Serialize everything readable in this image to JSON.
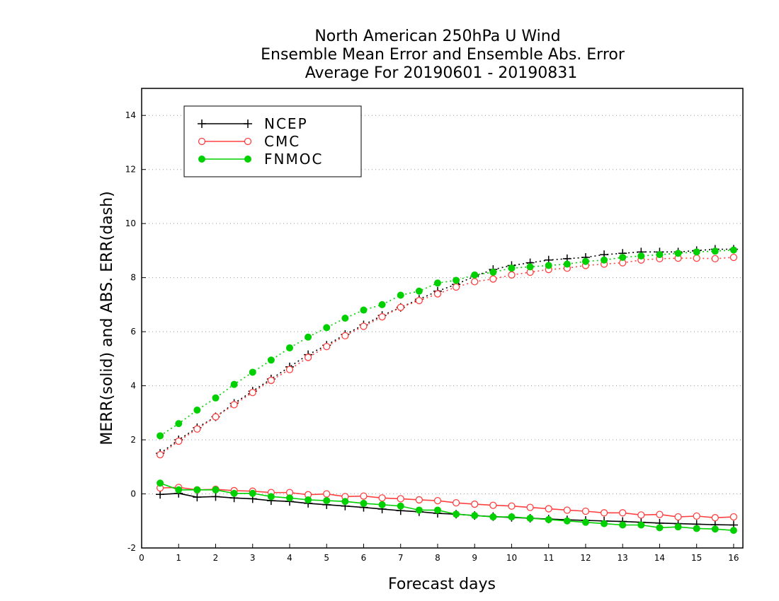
{
  "chart_data": {
    "type": "line",
    "title": [
      "North American 250hPa U Wind",
      "Ensemble Mean Error and Ensemble Abs. Error",
      "Average For 20190601 - 20190831"
    ],
    "xlabel": "Forecast days",
    "ylabel": "MERR(solid) and ABS. ERR(dash)",
    "xlim": [
      0,
      16.25
    ],
    "ylim": [
      -2,
      15
    ],
    "xticks": [
      0,
      1,
      2,
      3,
      4,
      5,
      6,
      7,
      8,
      9,
      10,
      11,
      12,
      13,
      14,
      15,
      16
    ],
    "yticks": [
      -2,
      0,
      2,
      4,
      6,
      8,
      10,
      12,
      14
    ],
    "grid": "dotted-horizontal",
    "legend": {
      "position": "top-left",
      "entries": [
        "NCEP",
        "CMC",
        "FNMOC"
      ]
    },
    "x": [
      0.5,
      1.0,
      1.5,
      2.0,
      2.5,
      3.0,
      3.5,
      4.0,
      4.5,
      5.0,
      5.5,
      6.0,
      6.5,
      7.0,
      7.5,
      8.0,
      8.5,
      9.0,
      9.5,
      10.0,
      10.5,
      11.0,
      11.5,
      12.0,
      12.5,
      13.0,
      13.5,
      14.0,
      14.5,
      15.0,
      15.5,
      16.0
    ],
    "series": [
      {
        "name": "NCEP",
        "color": "#000000",
        "marker": "plus",
        "merr": [
          -0.02,
          0.02,
          -0.12,
          -0.1,
          -0.15,
          -0.18,
          -0.25,
          -0.28,
          -0.35,
          -0.4,
          -0.45,
          -0.5,
          -0.56,
          -0.62,
          -0.66,
          -0.72,
          -0.75,
          -0.8,
          -0.84,
          -0.87,
          -0.9,
          -0.93,
          -0.96,
          -0.98,
          -1.0,
          -1.02,
          -1.05,
          -1.08,
          -1.1,
          -1.12,
          -1.14,
          -1.15
        ],
        "abs_err": [
          1.5,
          2.0,
          2.45,
          2.85,
          3.35,
          3.8,
          4.25,
          4.7,
          5.15,
          5.5,
          5.9,
          6.25,
          6.6,
          6.9,
          7.2,
          7.5,
          7.75,
          8.05,
          8.3,
          8.45,
          8.55,
          8.65,
          8.7,
          8.75,
          8.85,
          8.9,
          8.95,
          8.95,
          8.95,
          9.0,
          9.05,
          9.05
        ]
      },
      {
        "name": "CMC",
        "color": "#ff4040",
        "marker": "open-circle",
        "merr": [
          0.22,
          0.24,
          0.15,
          0.17,
          0.12,
          0.1,
          0.05,
          0.05,
          -0.03,
          0.0,
          -0.1,
          -0.08,
          -0.15,
          -0.18,
          -0.22,
          -0.25,
          -0.33,
          -0.38,
          -0.42,
          -0.45,
          -0.5,
          -0.55,
          -0.6,
          -0.64,
          -0.7,
          -0.7,
          -0.78,
          -0.76,
          -0.85,
          -0.82,
          -0.88,
          -0.85
        ],
        "abs_err": [
          1.45,
          1.95,
          2.4,
          2.85,
          3.3,
          3.75,
          4.2,
          4.6,
          5.05,
          5.45,
          5.85,
          6.2,
          6.55,
          6.9,
          7.15,
          7.4,
          7.65,
          7.85,
          7.95,
          8.1,
          8.2,
          8.3,
          8.35,
          8.45,
          8.5,
          8.55,
          8.65,
          8.7,
          8.72,
          8.72,
          8.7,
          8.75
        ]
      },
      {
        "name": "FNMOC",
        "color": "#00d000",
        "marker": "filled-circle",
        "merr": [
          0.4,
          0.15,
          0.15,
          0.15,
          0.02,
          0.02,
          -0.1,
          -0.15,
          -0.22,
          -0.25,
          -0.28,
          -0.35,
          -0.4,
          -0.45,
          -0.6,
          -0.6,
          -0.75,
          -0.8,
          -0.85,
          -0.85,
          -0.9,
          -0.95,
          -1.0,
          -1.05,
          -1.1,
          -1.15,
          -1.15,
          -1.25,
          -1.22,
          -1.28,
          -1.3,
          -1.35
        ],
        "abs_err": [
          2.15,
          2.6,
          3.1,
          3.55,
          4.05,
          4.5,
          4.95,
          5.4,
          5.8,
          6.15,
          6.5,
          6.8,
          7.0,
          7.35,
          7.5,
          7.8,
          7.9,
          8.1,
          8.2,
          8.35,
          8.4,
          8.45,
          8.5,
          8.6,
          8.65,
          8.75,
          8.8,
          8.85,
          8.9,
          8.95,
          8.98,
          9.02
        ]
      }
    ]
  }
}
